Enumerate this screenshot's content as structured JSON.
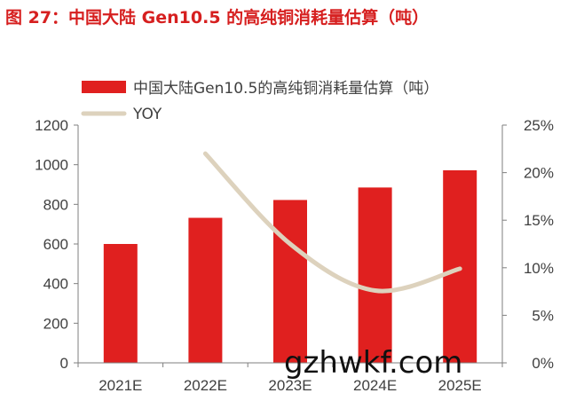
{
  "figure_title": "图 27：中国大陆 Gen10.5 的高纯铜消耗量估算（吨）",
  "watermark": "gzhwkf.com",
  "colors": {
    "bar": "#e0201f",
    "line": "#ddd2bd",
    "title": "#d61f1f",
    "text": "#404040",
    "axis": "#7f7f7f"
  },
  "chart_data": {
    "type": "bar",
    "title": "",
    "categories": [
      "2021E",
      "2022E",
      "2023E",
      "2024E",
      "2025E"
    ],
    "series": [
      {
        "name": "中国大陆Gen10.5的高纯铜消耗量估算（吨）",
        "type": "bar",
        "axis": "left",
        "values": [
          600,
          732,
          822,
          885,
          972
        ]
      },
      {
        "name": "YOY",
        "type": "line",
        "axis": "right",
        "values": [
          null,
          0.22,
          0.125,
          0.076,
          0.099
        ]
      }
    ],
    "ylim": [
      0,
      1200
    ],
    "y_ticks": [
      "0",
      "200",
      "400",
      "600",
      "800",
      "1000",
      "1200"
    ],
    "y2lim": [
      0,
      0.25
    ],
    "y2_ticks": [
      "0%",
      "5%",
      "10%",
      "15%",
      "20%",
      "25%"
    ],
    "grid": false,
    "legend_position": "top-left"
  }
}
